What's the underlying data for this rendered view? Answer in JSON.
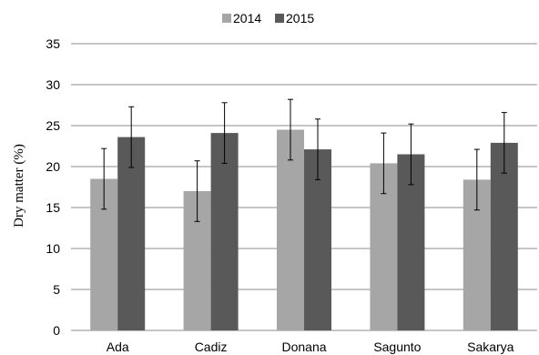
{
  "colors": {
    "series_2014": "#a6a6a6",
    "series_2015": "#595959",
    "grid": "#8c8c8c",
    "error_bar": "#000000"
  },
  "chart_data": {
    "type": "bar",
    "title": "",
    "xlabel": "",
    "ylabel": "Dry matter (%)",
    "ylim": [
      0,
      35
    ],
    "yticks": [
      "0",
      "5",
      "10",
      "15",
      "20",
      "25",
      "30",
      "35"
    ],
    "grid": true,
    "legend_position": "top-center",
    "categories": [
      "Ada",
      "Cadiz",
      "Donana",
      "Sagunto",
      "Sakarya"
    ],
    "series": [
      {
        "name": "2014",
        "values": [
          18.5,
          17.0,
          24.5,
          20.4,
          18.4
        ],
        "error": [
          3.7,
          3.7,
          3.7,
          3.7,
          3.7
        ]
      },
      {
        "name": "2015",
        "values": [
          23.6,
          24.1,
          22.1,
          21.5,
          22.9
        ],
        "error": [
          3.7,
          3.7,
          3.7,
          3.7,
          3.7
        ]
      }
    ]
  }
}
